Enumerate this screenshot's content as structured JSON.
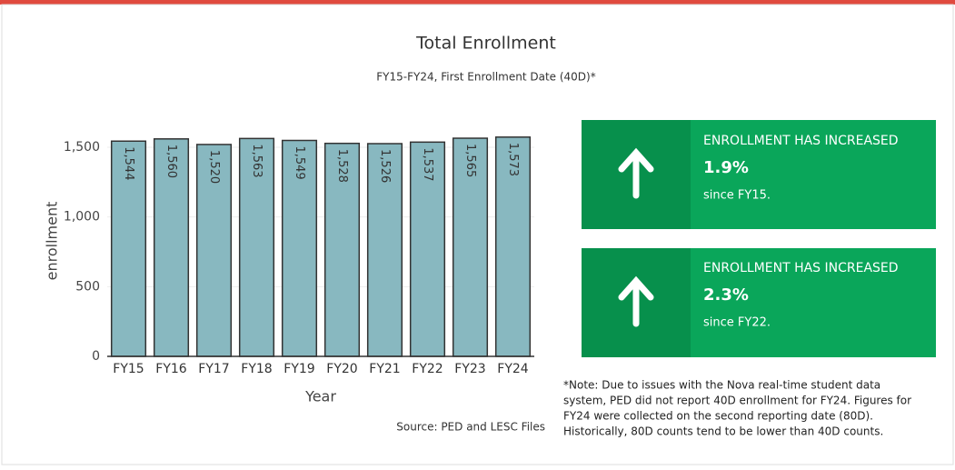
{
  "chart_data": {
    "type": "bar",
    "title": "Total Enrollment",
    "subtitle": "FY15-FY24, First Enrollment Date (40D)*",
    "x_label": "Year",
    "y_label": "enrollment",
    "categories": [
      "FY15",
      "FY16",
      "FY17",
      "FY18",
      "FY19",
      "FY20",
      "FY21",
      "FY22",
      "FY23",
      "FY24"
    ],
    "values": [
      1544,
      1560,
      1520,
      1563,
      1549,
      1528,
      1526,
      1537,
      1565,
      1573
    ],
    "value_labels": [
      "1,544",
      "1,560",
      "1,520",
      "1,563",
      "1,549",
      "1,528",
      "1,526",
      "1,537",
      "1,565",
      "1,573"
    ],
    "color": "#88b8c0",
    "ylim": [
      0,
      1650
    ],
    "yticks": [
      0,
      500,
      {
        "value": 1000,
        "label": "1,000"
      },
      {
        "value": 1500,
        "label": "1,500"
      }
    ],
    "grid": true
  },
  "source": "Source: PED and LESC Files",
  "cards": [
    {
      "heading": "ENROLLMENT HAS INCREASED",
      "value": "1.9%",
      "since": "since FY15."
    },
    {
      "heading": "ENROLLMENT HAS INCREASED",
      "value": "2.3%",
      "since": "since FY22."
    }
  ],
  "note": [
    "*Note: Due to issues with the Nova real-time student data",
    "system, PED did not report 40D enrollment for FY24. Figures for",
    "FY24 were collected on the second reporting date (80D).",
    "Historically, 80D counts tend to be lower than 40D counts."
  ]
}
